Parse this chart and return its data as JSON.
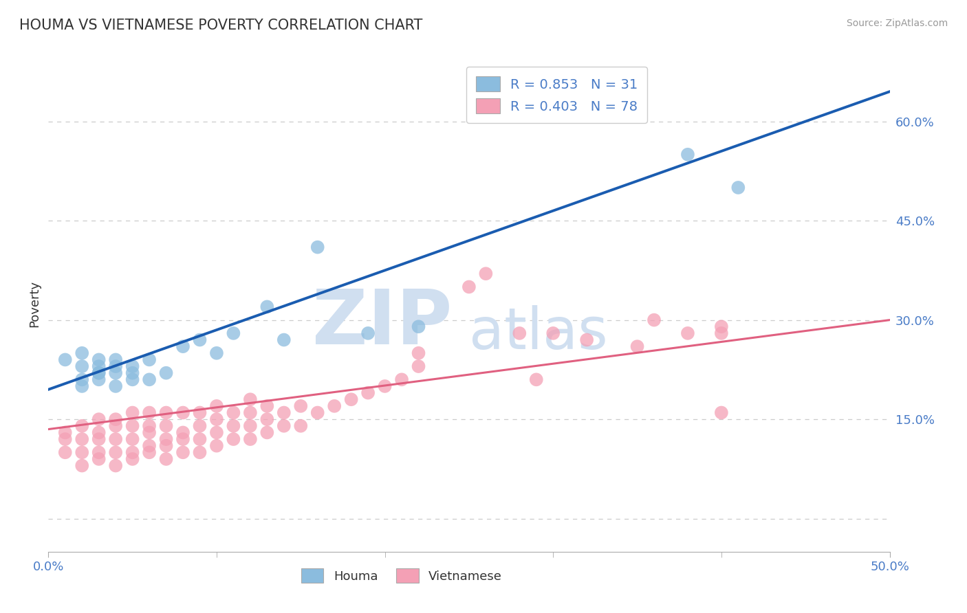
{
  "title": "HOUMA VS VIETNAMESE POVERTY CORRELATION CHART",
  "source": "Source: ZipAtlas.com",
  "ylabel": "Poverty",
  "xlim": [
    0.0,
    0.5
  ],
  "ylim": [
    -0.05,
    0.7
  ],
  "yticks": [
    0.0,
    0.15,
    0.3,
    0.45,
    0.6
  ],
  "ytick_labels": [
    "",
    "15.0%",
    "30.0%",
    "45.0%",
    "60.0%"
  ],
  "xtick_positions": [
    0.0,
    0.5
  ],
  "xtick_labels": [
    "0.0%",
    "50.0%"
  ],
  "xtick_minor": [
    0.1,
    0.2,
    0.3,
    0.4
  ],
  "houma_R": 0.853,
  "houma_N": 31,
  "viet_R": 0.403,
  "viet_N": 78,
  "houma_color": "#8bbcde",
  "viet_color": "#f4a0b5",
  "line_blue": "#1a5cb0",
  "line_pink": "#e06080",
  "houma_line_x0": 0.0,
  "houma_line_y0": 0.195,
  "houma_line_x1": 0.5,
  "houma_line_y1": 0.645,
  "viet_line_x0": 0.0,
  "viet_line_y0": 0.135,
  "viet_line_x1": 0.5,
  "viet_line_y1": 0.3,
  "houma_scatter_x": [
    0.01,
    0.02,
    0.02,
    0.02,
    0.02,
    0.03,
    0.03,
    0.03,
    0.03,
    0.03,
    0.04,
    0.04,
    0.04,
    0.04,
    0.05,
    0.05,
    0.05,
    0.06,
    0.06,
    0.07,
    0.08,
    0.09,
    0.1,
    0.11,
    0.13,
    0.14,
    0.16,
    0.19,
    0.22,
    0.38,
    0.41
  ],
  "houma_scatter_y": [
    0.24,
    0.2,
    0.21,
    0.23,
    0.25,
    0.21,
    0.22,
    0.23,
    0.24,
    0.22,
    0.2,
    0.22,
    0.23,
    0.24,
    0.21,
    0.22,
    0.23,
    0.21,
    0.24,
    0.22,
    0.26,
    0.27,
    0.25,
    0.28,
    0.32,
    0.27,
    0.41,
    0.28,
    0.29,
    0.55,
    0.5
  ],
  "viet_scatter_x": [
    0.01,
    0.01,
    0.01,
    0.02,
    0.02,
    0.02,
    0.02,
    0.03,
    0.03,
    0.03,
    0.03,
    0.03,
    0.04,
    0.04,
    0.04,
    0.04,
    0.04,
    0.05,
    0.05,
    0.05,
    0.05,
    0.05,
    0.06,
    0.06,
    0.06,
    0.06,
    0.06,
    0.07,
    0.07,
    0.07,
    0.07,
    0.07,
    0.08,
    0.08,
    0.08,
    0.08,
    0.09,
    0.09,
    0.09,
    0.09,
    0.1,
    0.1,
    0.1,
    0.1,
    0.11,
    0.11,
    0.11,
    0.12,
    0.12,
    0.12,
    0.12,
    0.13,
    0.13,
    0.13,
    0.14,
    0.14,
    0.15,
    0.15,
    0.16,
    0.17,
    0.18,
    0.19,
    0.2,
    0.21,
    0.22,
    0.22,
    0.25,
    0.26,
    0.28,
    0.29,
    0.3,
    0.32,
    0.35,
    0.36,
    0.38,
    0.4,
    0.4,
    0.4
  ],
  "viet_scatter_y": [
    0.1,
    0.12,
    0.13,
    0.08,
    0.1,
    0.12,
    0.14,
    0.09,
    0.1,
    0.12,
    0.13,
    0.15,
    0.08,
    0.1,
    0.12,
    0.14,
    0.15,
    0.09,
    0.1,
    0.12,
    0.14,
    0.16,
    0.1,
    0.11,
    0.13,
    0.14,
    0.16,
    0.09,
    0.11,
    0.12,
    0.14,
    0.16,
    0.1,
    0.12,
    0.13,
    0.16,
    0.1,
    0.12,
    0.14,
    0.16,
    0.11,
    0.13,
    0.15,
    0.17,
    0.12,
    0.14,
    0.16,
    0.12,
    0.14,
    0.16,
    0.18,
    0.13,
    0.15,
    0.17,
    0.14,
    0.16,
    0.14,
    0.17,
    0.16,
    0.17,
    0.18,
    0.19,
    0.2,
    0.21,
    0.23,
    0.25,
    0.35,
    0.37,
    0.28,
    0.21,
    0.28,
    0.27,
    0.26,
    0.3,
    0.28,
    0.16,
    0.29,
    0.28
  ],
  "background_color": "#ffffff",
  "grid_color": "#cccccc",
  "title_color": "#333333",
  "tick_label_color": "#4a7cc7",
  "watermark_color": "#d0dff0"
}
